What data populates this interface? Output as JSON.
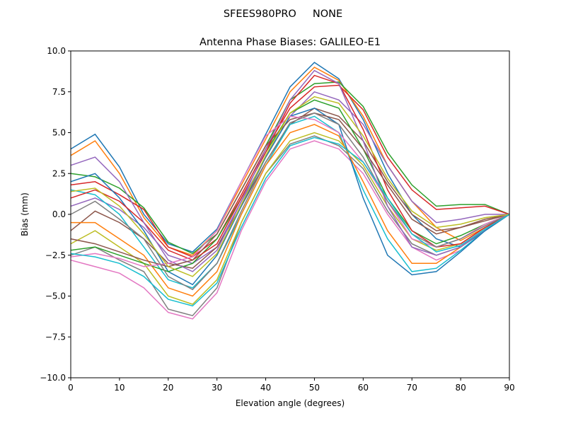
{
  "chart_data": {
    "type": "line",
    "suptitle": "SFEES980PRO     NONE",
    "title": "Antenna Phase Biases: GALILEO-E1",
    "xlabel": "Elevation angle (degrees)",
    "ylabel": "Bias (mm)",
    "xlim": [
      0,
      90
    ],
    "ylim": [
      -10,
      10
    ],
    "xticks": [
      0,
      10,
      20,
      30,
      40,
      50,
      60,
      70,
      80,
      90
    ],
    "yticks": [
      -10,
      -7.5,
      -5,
      -2.5,
      0,
      2.5,
      5,
      7.5,
      10
    ],
    "ytick_labels": [
      "−10.0",
      "−7.5",
      "−5.0",
      "−2.5",
      "0.0",
      "2.5",
      "5.0",
      "7.5",
      "10.0"
    ],
    "grid": false,
    "colors": [
      "#1f77b4",
      "#ff7f0e",
      "#2ca02c",
      "#d62728",
      "#9467bd",
      "#8c564b",
      "#e377c2",
      "#7f7f7f",
      "#bcbd22",
      "#17becf"
    ],
    "x": [
      0,
      5,
      10,
      15,
      20,
      25,
      30,
      35,
      40,
      45,
      50,
      55,
      60,
      65,
      70,
      75,
      80,
      85,
      90
    ],
    "series": [
      {
        "values": [
          4.0,
          4.9,
          2.9,
          0.0,
          -1.8,
          -2.3,
          -0.9,
          2.0,
          4.9,
          7.8,
          9.3,
          8.3,
          5.8,
          2.5,
          0.0,
          -1.5,
          -2.0,
          -1.0,
          0
        ]
      },
      {
        "values": [
          3.6,
          4.5,
          2.5,
          -0.2,
          -2.0,
          -2.5,
          -1.0,
          1.8,
          4.6,
          7.5,
          9.0,
          8.2,
          6.0,
          3.0,
          0.8,
          -0.8,
          -1.6,
          -0.8,
          0
        ]
      },
      {
        "values": [
          2.5,
          2.3,
          1.6,
          0.4,
          -1.7,
          -2.4,
          -1.2,
          1.5,
          4.2,
          7.0,
          8.0,
          8.1,
          6.6,
          3.8,
          1.8,
          0.5,
          0.6,
          0.6,
          0
        ]
      },
      {
        "values": [
          1.8,
          2.0,
          1.2,
          0.3,
          -2.0,
          -2.6,
          -1.5,
          1.2,
          4.0,
          6.5,
          7.8,
          7.9,
          6.4,
          3.5,
          1.5,
          0.3,
          0.4,
          0.5,
          0
        ]
      },
      {
        "values": [
          0.5,
          1.0,
          0.3,
          -0.8,
          -2.5,
          -3.0,
          -2.0,
          0.8,
          3.5,
          6.0,
          7.5,
          7.0,
          5.5,
          3.0,
          0.8,
          -0.5,
          -0.3,
          0.0,
          0
        ]
      },
      {
        "values": [
          -1.0,
          0.2,
          -0.5,
          -1.5,
          -3.0,
          -3.3,
          -2.0,
          0.5,
          3.2,
          5.5,
          6.5,
          6.0,
          4.5,
          2.0,
          0.0,
          -1.0,
          -0.8,
          -0.3,
          0
        ]
      },
      {
        "values": [
          -2.8,
          -3.2,
          -3.6,
          -4.5,
          -6.0,
          -6.4,
          -4.8,
          -1.0,
          2.0,
          4.0,
          4.5,
          4.0,
          2.5,
          0.0,
          -2.0,
          -2.8,
          -2.2,
          -1.0,
          0
        ]
      },
      {
        "values": [
          -2.5,
          -2.0,
          -2.8,
          -3.5,
          -5.8,
          -6.2,
          -4.5,
          -0.5,
          2.5,
          4.3,
          4.8,
          4.2,
          2.8,
          0.2,
          -1.8,
          -2.5,
          -2.0,
          -0.9,
          0
        ]
      },
      {
        "values": [
          -1.8,
          -1.0,
          -2.0,
          -3.0,
          -5.0,
          -5.5,
          -4.0,
          -0.5,
          2.5,
          4.5,
          5.0,
          4.5,
          3.0,
          0.5,
          -1.5,
          -2.2,
          -1.8,
          -0.8,
          0
        ]
      },
      {
        "values": [
          1.5,
          1.2,
          0.0,
          -2.0,
          -4.0,
          -4.5,
          -3.0,
          0.0,
          3.0,
          5.5,
          6.0,
          5.0,
          1.5,
          -1.5,
          -3.5,
          -3.3,
          -2.2,
          -1.0,
          0
        ]
      },
      {
        "values": [
          2.0,
          2.5,
          1.0,
          -1.0,
          -3.5,
          -4.3,
          -2.5,
          0.5,
          3.5,
          6.0,
          6.5,
          5.5,
          1.0,
          -2.5,
          -3.7,
          -3.5,
          -2.3,
          -1.0,
          0
        ]
      },
      {
        "values": [
          -0.5,
          -0.5,
          -1.5,
          -2.5,
          -4.5,
          -5.0,
          -3.5,
          0.0,
          3.0,
          5.0,
          5.5,
          4.8,
          2.0,
          -1.0,
          -3.0,
          -3.0,
          -2.0,
          -0.9,
          0
        ]
      },
      {
        "values": [
          -2.2,
          -2.0,
          -2.5,
          -3.0,
          -3.5,
          -3.0,
          -1.5,
          1.0,
          3.8,
          6.2,
          7.0,
          6.5,
          4.0,
          1.0,
          -1.0,
          -1.8,
          -1.3,
          -0.6,
          0
        ]
      },
      {
        "values": [
          1.0,
          1.5,
          0.8,
          -0.5,
          -2.2,
          -2.8,
          -1.8,
          1.0,
          3.8,
          6.8,
          8.5,
          8.0,
          5.2,
          1.5,
          -1.0,
          -2.0,
          -1.8,
          -0.8,
          0
        ]
      },
      {
        "values": [
          3.0,
          3.5,
          2.0,
          -0.5,
          -2.8,
          -3.5,
          -2.2,
          0.8,
          4.0,
          7.0,
          8.8,
          8.0,
          4.5,
          0.5,
          -2.0,
          -2.5,
          -2.0,
          -0.9,
          0
        ]
      },
      {
        "values": [
          -1.5,
          -1.8,
          -2.3,
          -2.8,
          -3.2,
          -2.8,
          -1.2,
          1.5,
          4.2,
          5.8,
          6.2,
          5.8,
          4.0,
          1.8,
          -0.3,
          -1.2,
          -0.8,
          -0.4,
          0
        ]
      },
      {
        "values": [
          -2.6,
          -2.4,
          -2.7,
          -3.2,
          -3.0,
          -2.6,
          -1.0,
          2.0,
          4.8,
          6.0,
          5.8,
          5.0,
          3.2,
          0.8,
          -1.5,
          -2.0,
          -1.5,
          -0.6,
          0
        ]
      },
      {
        "values": [
          0.0,
          0.8,
          -0.3,
          -1.5,
          -3.8,
          -4.6,
          -3.0,
          0.2,
          3.2,
          5.6,
          6.2,
          5.5,
          3.5,
          0.8,
          -1.2,
          -2.0,
          -1.5,
          -0.7,
          0
        ]
      },
      {
        "values": [
          1.4,
          1.6,
          0.5,
          -1.2,
          -3.2,
          -3.8,
          -2.4,
          0.6,
          3.6,
          6.2,
          7.2,
          6.8,
          4.8,
          2.2,
          0.2,
          -0.8,
          -0.6,
          -0.2,
          0
        ]
      },
      {
        "values": [
          -2.4,
          -2.6,
          -3.0,
          -3.8,
          -5.2,
          -5.6,
          -4.2,
          -0.8,
          2.2,
          4.2,
          4.7,
          4.3,
          3.2,
          1.0,
          -1.2,
          -2.3,
          -1.9,
          -0.9,
          0
        ]
      }
    ]
  }
}
